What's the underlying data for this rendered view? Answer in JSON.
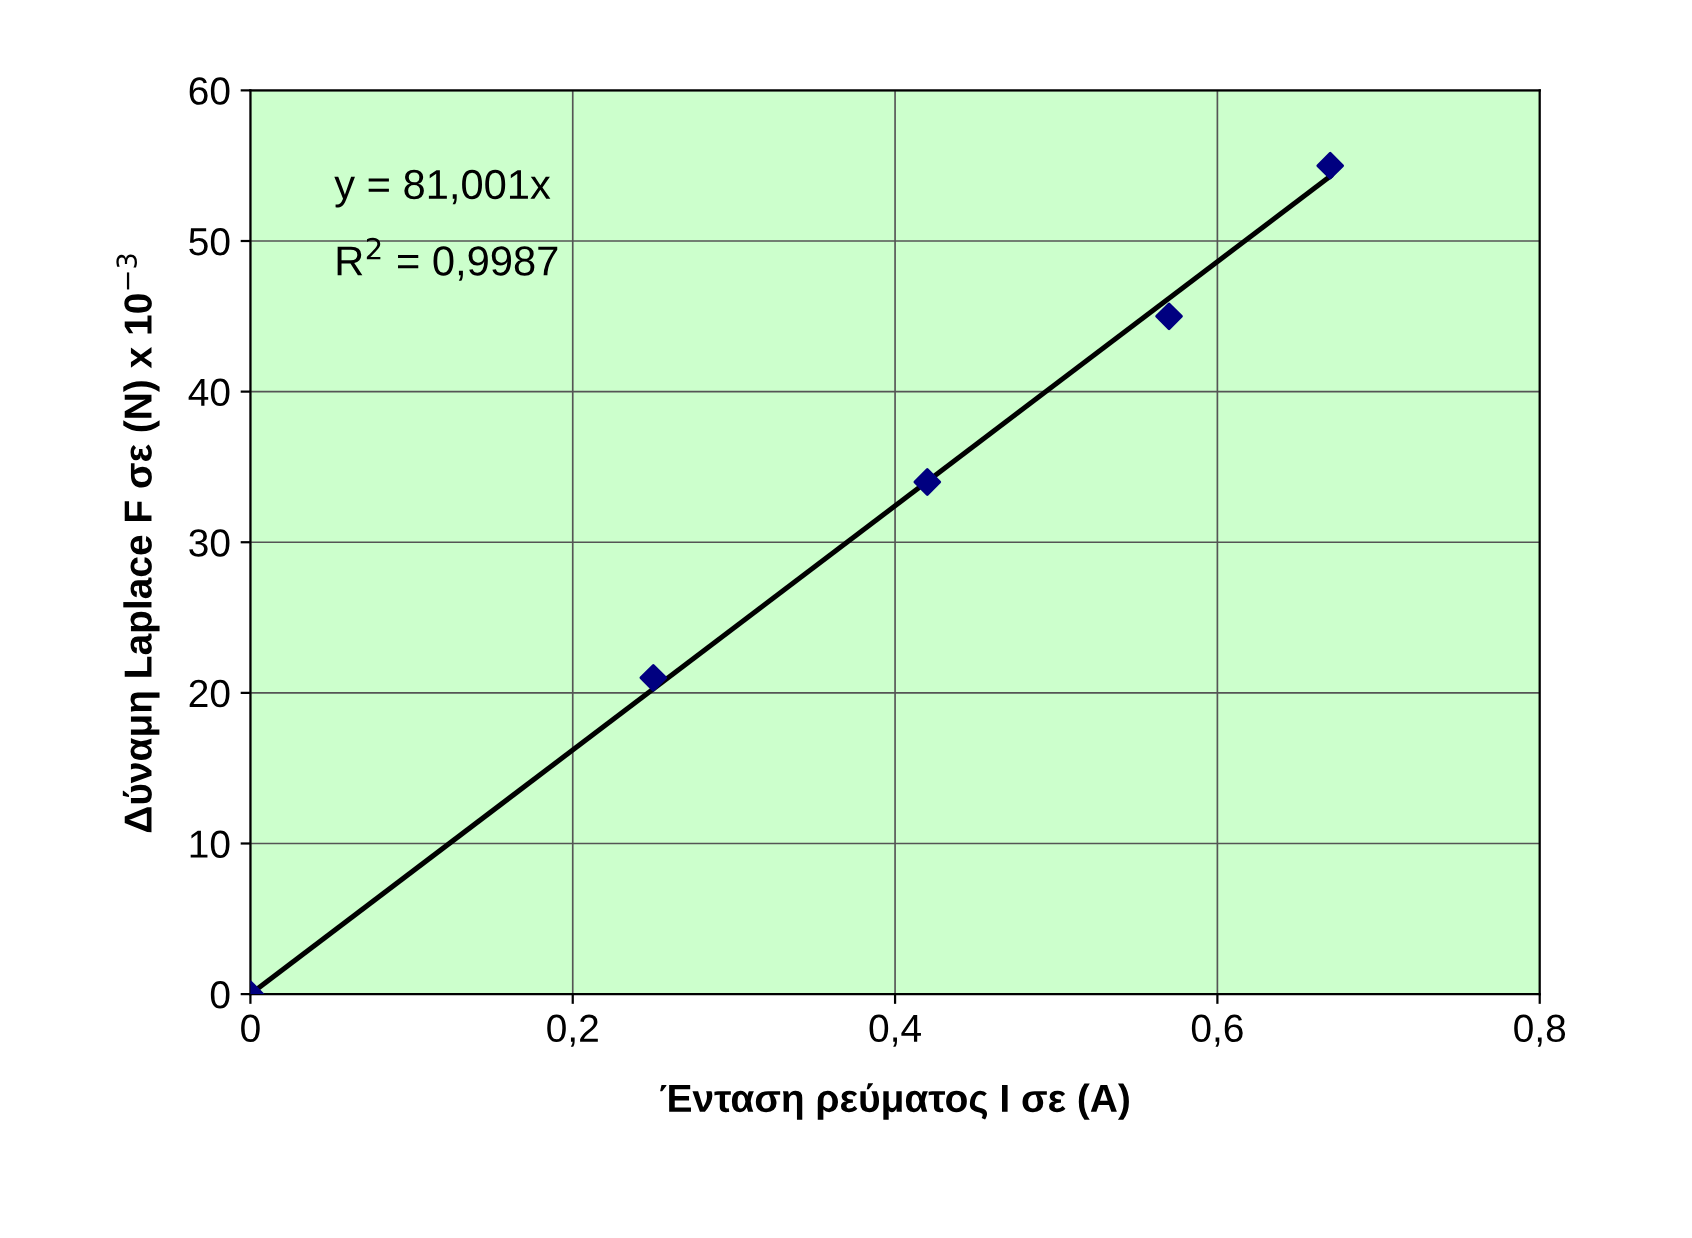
{
  "chart_data": {
    "type": "scatter",
    "xlabel": "Ένταση ρεύματος I σε (A)",
    "ylabel": "Δύναμη Laplace F σε (N) x 10$^{−3}$",
    "annotations": [
      "y = 81,001x",
      "R$^{2}$ = 0,9987"
    ],
    "series": [
      {
        "color": "#000080",
        "marker": "diamond",
        "x": [
          0,
          0.25,
          0.42,
          0.57,
          0.67
        ],
        "values": [
          0,
          21,
          34,
          45,
          55
        ]
      },
      {
        "type": "line",
        "color": "#000000",
        "marker": "none",
        "x": [
          0,
          0.67
        ],
        "values": [
          0,
          54.3
        ]
      }
    ],
    "xlim": [
      0,
      0.8
    ],
    "xticks": [
      0,
      {
        "value": 0.2,
        "label": "0,2"
      },
      {
        "value": 0.4,
        "label": "0,4"
      },
      {
        "value": 0.6,
        "label": "0,6"
      },
      {
        "value": 0.8,
        "label": "0,8"
      }
    ],
    "ylim": [
      0,
      60
    ],
    "yticks": [
      0,
      10,
      20,
      30,
      40,
      50,
      60
    ],
    "grid": true
  }
}
